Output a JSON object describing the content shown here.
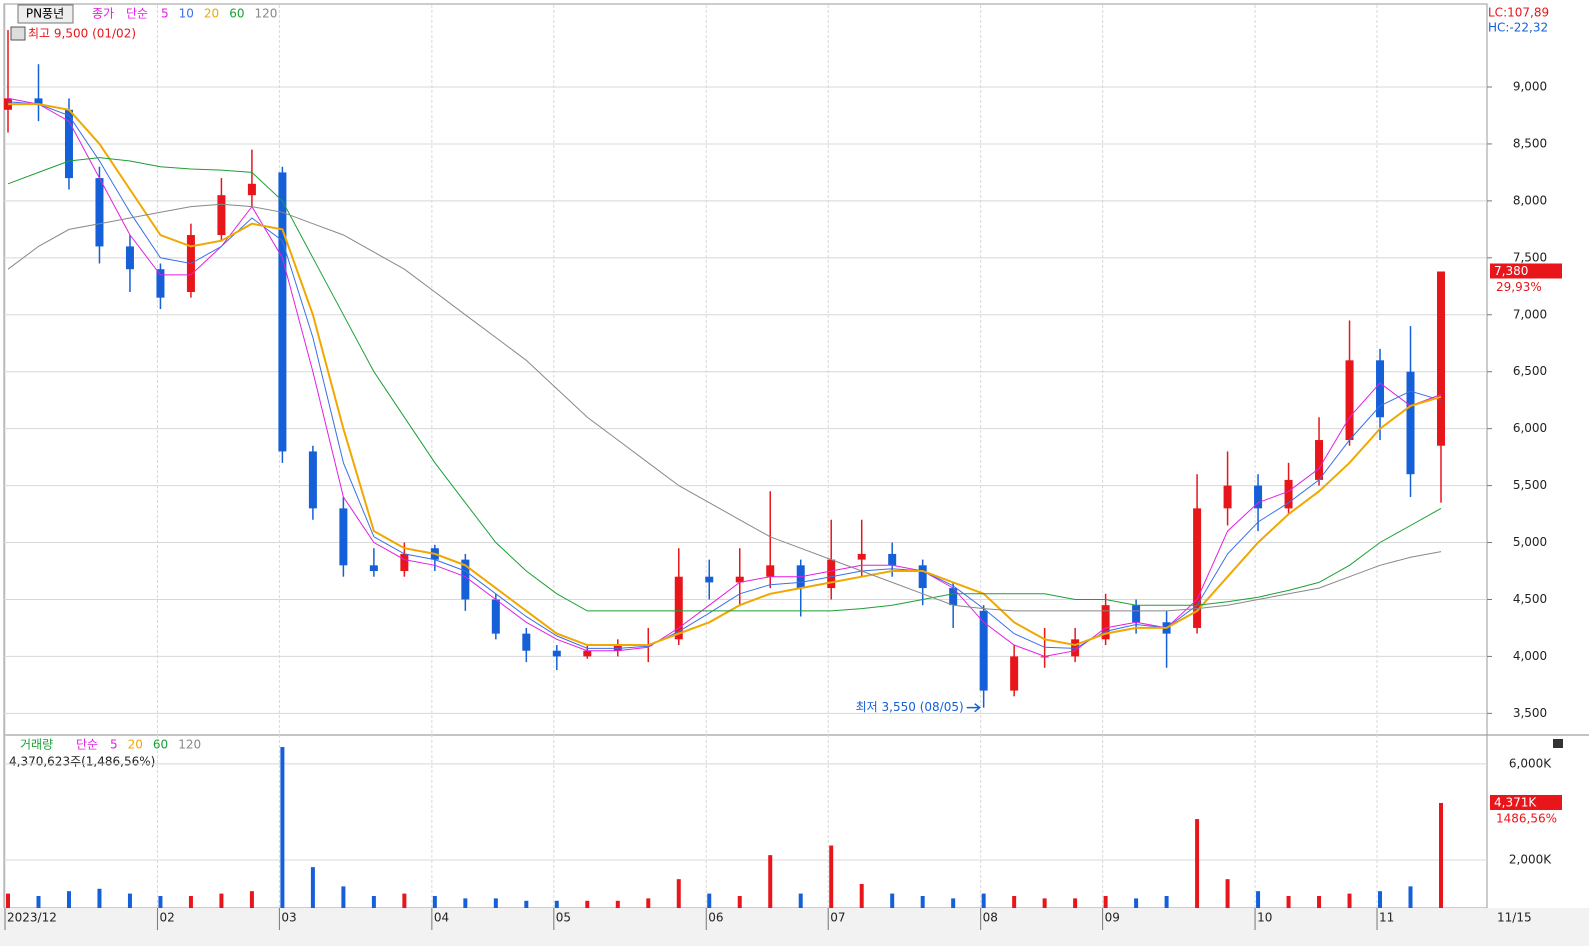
{
  "chart_data": {
    "type": "candlestick",
    "title": "PN풍년",
    "price_type": "종가",
    "ma_type": "단순",
    "categories": [
      "2023/12",
      null,
      null,
      null,
      null,
      "02",
      null,
      null,
      null,
      "03",
      null,
      null,
      null,
      null,
      "04",
      null,
      null,
      null,
      "05",
      null,
      null,
      null,
      null,
      "06",
      null,
      null,
      null,
      "07",
      null,
      null,
      null,
      null,
      "08",
      null,
      null,
      null,
      "09",
      null,
      null,
      null,
      null,
      "10",
      null,
      null,
      null,
      "11",
      null,
      null
    ],
    "open": [
      8800,
      8900,
      8800,
      8200,
      7600,
      7400,
      7200,
      7700,
      8050,
      8250,
      5800,
      5300,
      4800,
      4750,
      4950,
      4850,
      4500,
      4200,
      4050,
      4000,
      4050,
      4100,
      4150,
      4700,
      4650,
      4700,
      4800,
      4600,
      4850,
      4900,
      4800,
      4600,
      4400,
      3700,
      4000,
      4000,
      4150,
      4450,
      4300,
      4250,
      5300,
      5500,
      5300,
      5550,
      5900,
      6600,
      6500,
      5850
    ],
    "high": [
      9500,
      9200,
      8900,
      8300,
      7700,
      7450,
      7800,
      8200,
      8450,
      8300,
      5850,
      5400,
      4950,
      5000,
      4980,
      4900,
      4550,
      4250,
      4100,
      4100,
      4150,
      4250,
      4950,
      4850,
      4950,
      5450,
      4850,
      5200,
      5200,
      5000,
      4850,
      4650,
      4450,
      4100,
      4250,
      4250,
      4550,
      4500,
      4400,
      5600,
      5800,
      5600,
      5700,
      6100,
      6950,
      6700,
      6900,
      7380
    ],
    "low": [
      8600,
      8700,
      8100,
      7450,
      7200,
      7050,
      7150,
      7650,
      7950,
      5700,
      5200,
      4700,
      4700,
      4700,
      4750,
      4400,
      4150,
      3950,
      3880,
      3980,
      4000,
      3950,
      4100,
      4500,
      4450,
      4600,
      4350,
      4500,
      4700,
      4700,
      4450,
      4250,
      3550,
      3650,
      3900,
      3950,
      4100,
      4200,
      3900,
      4200,
      5150,
      5100,
      5250,
      5500,
      5850,
      5900,
      5400,
      5350
    ],
    "close": [
      8900,
      8850,
      8200,
      7600,
      7400,
      7150,
      7700,
      8050,
      8150,
      5800,
      5300,
      4800,
      4750,
      4900,
      4850,
      4500,
      4200,
      4050,
      4000,
      4050,
      4100,
      4100,
      4700,
      4650,
      4700,
      4800,
      4600,
      4850,
      4900,
      4800,
      4600,
      4450,
      3700,
      4000,
      4000,
      4150,
      4450,
      4300,
      4200,
      5300,
      5500,
      5300,
      5550,
      5900,
      6600,
      6100,
      5600,
      7380
    ],
    "up_color": "#e8161b",
    "down_color": "#1560d8",
    "series": [
      {
        "name": "5",
        "color": "#e41ee4",
        "values": [
          8900,
          8850,
          8700,
          8200,
          7700,
          7350,
          7350,
          7600,
          7950,
          7500,
          6500,
          5400,
          5000,
          4850,
          4800,
          4700,
          4500,
          4300,
          4150,
          4050,
          4050,
          4080,
          4250,
          4450,
          4650,
          4700,
          4700,
          4750,
          4800,
          4800,
          4750,
          4600,
          4300,
          4100,
          4000,
          4050,
          4250,
          4300,
          4250,
          4500,
          5100,
          5350,
          5450,
          5650,
          6100,
          6400,
          6200,
          6300
        ]
      },
      {
        "name": "10",
        "color": "#3a6fe8",
        "values": [
          8870,
          8850,
          8750,
          8350,
          7900,
          7500,
          7450,
          7600,
          7850,
          7650,
          6800,
          5700,
          5050,
          4900,
          4850,
          4750,
          4550,
          4350,
          4180,
          4070,
          4070,
          4090,
          4220,
          4380,
          4550,
          4630,
          4650,
          4700,
          4750,
          4770,
          4750,
          4620,
          4420,
          4200,
          4080,
          4070,
          4220,
          4280,
          4250,
          4450,
          4900,
          5180,
          5350,
          5550,
          5900,
          6200,
          6330,
          6250
        ]
      },
      {
        "name": "20",
        "color": "#f0a800",
        "values": [
          8850,
          8850,
          8800,
          8500,
          8100,
          7700,
          7600,
          7650,
          7800,
          7750,
          7000,
          6000,
          5100,
          4950,
          4900,
          4800,
          4600,
          4400,
          4200,
          4100,
          4100,
          4100,
          4200,
          4300,
          4450,
          4550,
          4600,
          4650,
          4700,
          4750,
          4750,
          4650,
          4550,
          4300,
          4150,
          4100,
          4200,
          4250,
          4250,
          4400,
          4700,
          5000,
          5250,
          5450,
          5700,
          6000,
          6200,
          6280
        ]
      },
      {
        "name": "60",
        "color": "#1aa035",
        "values": [
          8150,
          8250,
          8350,
          8380,
          8350,
          8300,
          8280,
          8270,
          8250,
          8000,
          7500,
          7000,
          6500,
          6100,
          5700,
          5350,
          5000,
          4750,
          4550,
          4400,
          4400,
          4400,
          4400,
          4400,
          4400,
          4400,
          4400,
          4400,
          4420,
          4450,
          4500,
          4550,
          4550,
          4550,
          4550,
          4500,
          4500,
          4450,
          4450,
          4450,
          4480,
          4520,
          4580,
          4650,
          4800,
          5000,
          5150,
          5300
        ]
      },
      {
        "name": "120",
        "color": "#888888",
        "values": [
          7400,
          7600,
          7750,
          7800,
          7850,
          7900,
          7950,
          7970,
          7950,
          7900,
          7800,
          7700,
          7550,
          7400,
          7200,
          7000,
          6800,
          6600,
          6350,
          6100,
          5900,
          5700,
          5500,
          5350,
          5200,
          5050,
          4950,
          4850,
          4750,
          4650,
          4550,
          4450,
          4420,
          4400,
          4400,
          4400,
          4400,
          4400,
          4400,
          4420,
          4450,
          4500,
          4550,
          4600,
          4700,
          4800,
          4870,
          4920
        ]
      }
    ],
    "ylim": [
      3310,
      9720
    ],
    "yticks": [
      {
        "value": 3500,
        "label": "3,500"
      },
      {
        "value": 4000,
        "label": "4,000"
      },
      {
        "value": 4500,
        "label": "4,500"
      },
      {
        "value": 5000,
        "label": "5,000"
      },
      {
        "value": 5500,
        "label": "5,500"
      },
      {
        "value": 6000,
        "label": "6,000"
      },
      {
        "value": 6500,
        "label": "6,500"
      },
      {
        "value": 7000,
        "label": "7,000"
      },
      {
        "value": 7500,
        "label": "7,500"
      },
      {
        "value": 8000,
        "label": "8,000"
      },
      {
        "value": 8500,
        "label": "8,500"
      },
      {
        "value": 9000,
        "label": "9,000"
      }
    ],
    "grid": true,
    "high_note": "최고 9,500 (01/02)",
    "low_note": "최저 3,550 (08/05)",
    "lc": "LC:107,89",
    "hc": "HC:-22,32",
    "last_label": "7,380",
    "change_label": "29,93%",
    "x_end": "11/15",
    "volume": {
      "title": "거래량",
      "ma_type": "단순",
      "ma_names": [
        {
          "name": "5",
          "color": "#e41ee4"
        },
        {
          "name": "20",
          "color": "#f0a800"
        },
        {
          "name": "60",
          "color": "#1aa035"
        },
        {
          "name": "120",
          "color": "#888888"
        }
      ],
      "values": [
        600000,
        500000,
        700000,
        800000,
        600000,
        500000,
        500000,
        600000,
        700000,
        6700000,
        1700000,
        900000,
        500000,
        600000,
        500000,
        400000,
        400000,
        300000,
        300000,
        300000,
        300000,
        400000,
        1200000,
        600000,
        500000,
        2200000,
        600000,
        2600000,
        1000000,
        600000,
        500000,
        400000,
        600000,
        500000,
        400000,
        400000,
        500000,
        400000,
        500000,
        3700000,
        1200000,
        700000,
        500000,
        500000,
        600000,
        700000,
        900000,
        4370623
      ],
      "ylim": [
        0,
        7200000
      ],
      "yticks": [
        {
          "value": 2000000,
          "label": "2,000K"
        },
        {
          "value": 6000000,
          "label": "6,000K"
        }
      ],
      "current": "4,370,623주(1,486,56%)",
      "last_label": "4,371K",
      "change_label": "1486,56%"
    }
  }
}
